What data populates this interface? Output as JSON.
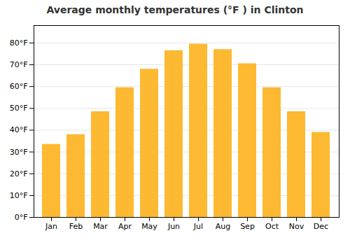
{
  "chart_data": {
    "type": "bar",
    "title": "Average monthly temperatures (°F ) in Clinton",
    "categories": [
      "Jan",
      "Feb",
      "Mar",
      "Apr",
      "May",
      "Jun",
      "Jul",
      "Aug",
      "Sep",
      "Oct",
      "Nov",
      "Dec"
    ],
    "values": [
      33.5,
      38,
      48.5,
      59.5,
      68,
      76.5,
      79.5,
      77,
      70.5,
      59.5,
      48.5,
      39
    ],
    "color": "#FDB932",
    "ylim": [
      0,
      88
    ],
    "yticks": [
      {
        "value": 0,
        "label": "0°F"
      },
      {
        "value": 10,
        "label": "10°F"
      },
      {
        "value": 20,
        "label": "20°F"
      },
      {
        "value": 30,
        "label": "30°F"
      },
      {
        "value": 40,
        "label": "40°F"
      },
      {
        "value": 50,
        "label": "50°F"
      },
      {
        "value": 60,
        "label": "60°F"
      },
      {
        "value": 70,
        "label": "70°F"
      },
      {
        "value": 80,
        "label": "80°F"
      }
    ],
    "grid": true
  }
}
